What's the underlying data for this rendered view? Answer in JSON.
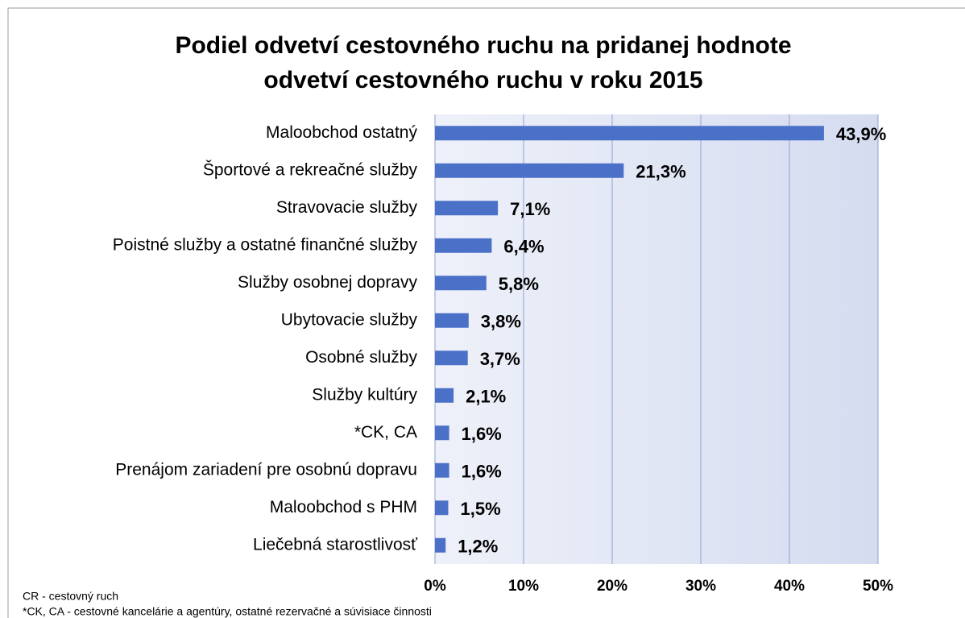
{
  "chart_data": {
    "type": "barh",
    "title": [
      "Podiel odvetví cestovného ruchu na pridanej hodnote",
      "odvetví cestovného ruchu v roku 2015"
    ],
    "categories": [
      "Maloobchod ostatný",
      "Športové a rekreačné služby",
      "Stravovacie služby",
      "Poistné služby a ostatné finančné služby",
      "Služby osobnej dopravy",
      "Ubytovacie služby",
      "Osobné služby",
      "Služby kultúry",
      "*CK, CA",
      "Prenájom zariadení pre osobnú dopravu",
      "Maloobchod s PHM",
      "Liečebná starostlivosť"
    ],
    "values": [
      43.9,
      21.3,
      7.1,
      6.4,
      5.8,
      3.8,
      3.7,
      2.1,
      1.6,
      1.6,
      1.5,
      1.2
    ],
    "value_labels": [
      "43,9%",
      "21,3%",
      "7,1%",
      "6,4%",
      "5,8%",
      "3,8%",
      "3,7%",
      "2,1%",
      "1,6%",
      "1,6%",
      "1,5%",
      "1,2%"
    ],
    "color": "#4a70c8",
    "xlim": [
      0,
      50
    ],
    "xticks": [
      {
        "value": 0,
        "label": "0%"
      },
      {
        "value": 10,
        "label": "10%"
      },
      {
        "value": 20,
        "label": "20%"
      },
      {
        "value": 30,
        "label": "30%"
      },
      {
        "value": 40,
        "label": "40%"
      },
      {
        "value": 50,
        "label": "50%"
      }
    ],
    "grid": true,
    "notes": [
      "CR - cestovný ruch",
      "*CK, CA - cestovné kancelárie a agentúry, ostatné rezervačné a súvisiace činnosti"
    ]
  }
}
